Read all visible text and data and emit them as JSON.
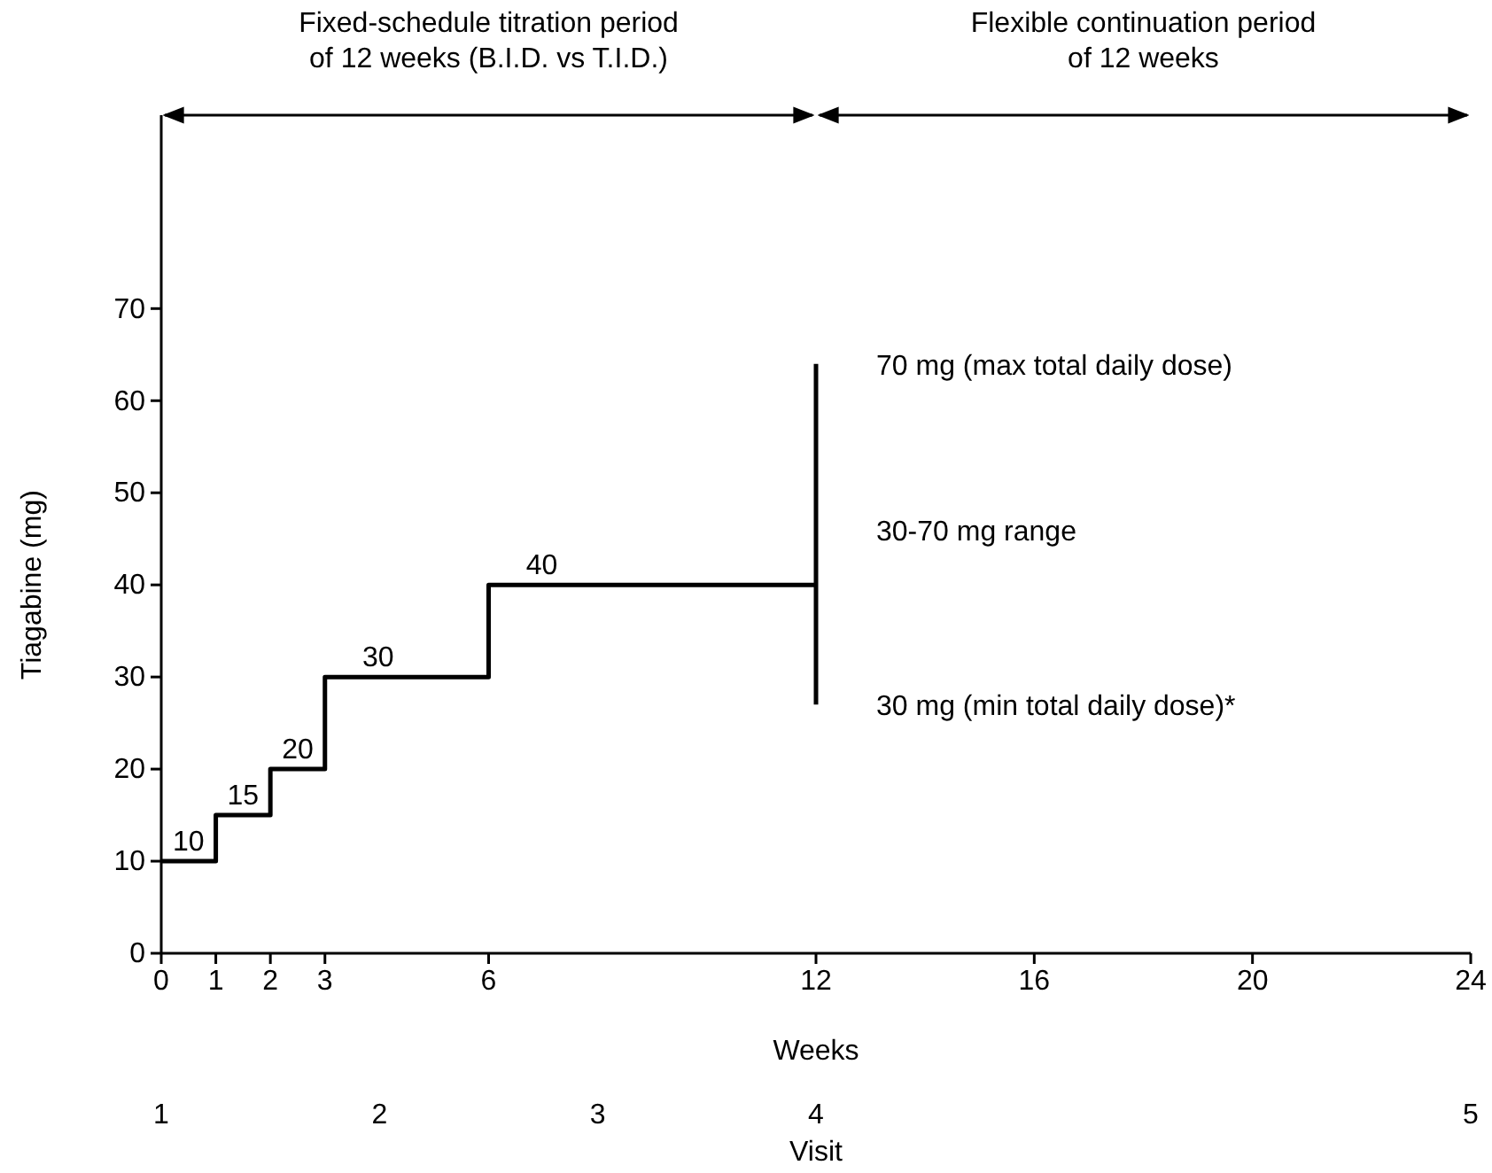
{
  "chart_data": {
    "type": "step",
    "xlabel": "Weeks",
    "ylabel": "Tiagabine (mg)",
    "xlim": [
      0,
      24
    ],
    "xticks": [
      0,
      1,
      2,
      3,
      6,
      12,
      16,
      20,
      24
    ],
    "ylim": [
      0,
      91
    ],
    "yticks": [
      0,
      10,
      20,
      30,
      40,
      50,
      60,
      70
    ],
    "grid": false,
    "series": [
      {
        "color": "#000000",
        "x": [
          0,
          1,
          2,
          3,
          6,
          12
        ],
        "values": [
          10,
          15,
          20,
          30,
          40,
          40
        ],
        "value_labels": [
          "10",
          "15",
          "20",
          "30",
          "40",
          null
        ]
      },
      {
        "type": "line",
        "color": "#000000",
        "x": [
          12,
          12
        ],
        "values": [
          27,
          64
        ]
      }
    ],
    "annotations": [
      "Fixed-schedule titration period\nof 12 weeks (B.I.D. vs T.I.D.)",
      "Flexible continuation period\nof 12 weeks",
      {
        "text": "70 mg (max total daily dose)",
        "x": 12,
        "y": 64
      },
      "30-70 mg range",
      {
        "text": "30 mg (min total daily dose)*",
        "x": 12,
        "y": 27
      },
      "1",
      "2",
      "3",
      "4",
      "5",
      "Visit"
    ]
  }
}
